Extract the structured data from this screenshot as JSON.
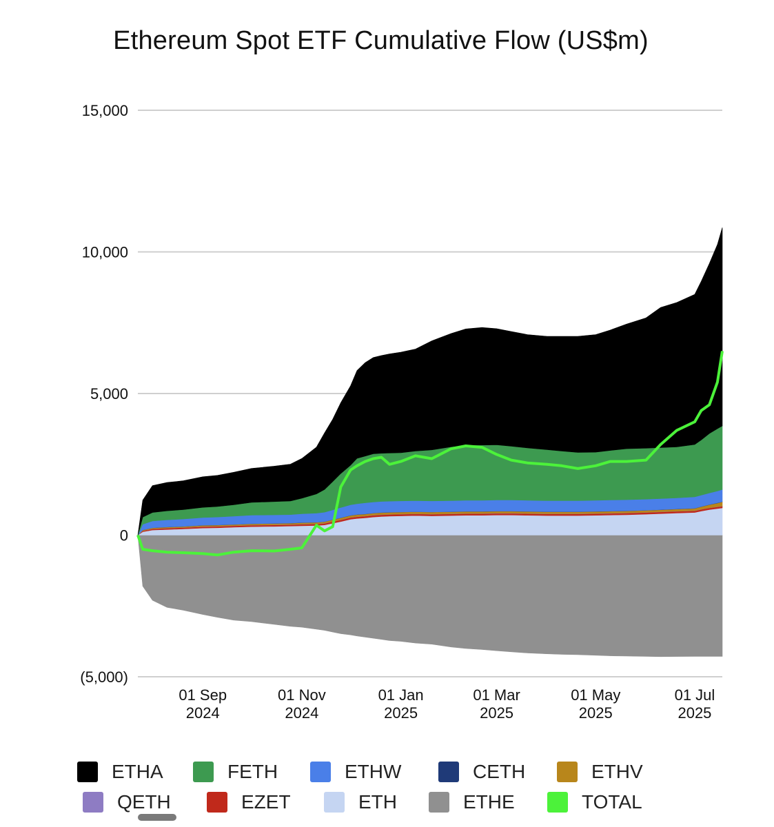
{
  "chart_data": {
    "type": "area",
    "title": "Ethereum Spot ETF Cumulative Flow (US$m)",
    "xlabel": "",
    "ylabel": "",
    "ylim": [
      -5000,
      15000
    ],
    "yticks": [
      15000,
      10000,
      5000,
      0,
      -5000
    ],
    "ytick_labels": [
      "15,000",
      "10,000",
      "5,000",
      "0",
      "(5,000)"
    ],
    "xlim": [
      "2024-07-23",
      "2025-07-18"
    ],
    "xticks": [
      "2024-09-01",
      "2024-11-01",
      "2025-01-01",
      "2025-03-01",
      "2025-05-01",
      "2025-07-01"
    ],
    "xtick_labels": [
      [
        "01 Sep",
        "2024"
      ],
      [
        "01 Nov",
        "2024"
      ],
      [
        "01 Jan",
        "2025"
      ],
      [
        "01 Mar",
        "2025"
      ],
      [
        "01 May",
        "2025"
      ],
      [
        "01 Jul",
        "2025"
      ]
    ],
    "grid": true,
    "legend_position": "bottom",
    "x": [
      "2024-07-23",
      "2024-07-26",
      "2024-08-01",
      "2024-08-10",
      "2024-08-20",
      "2024-09-01",
      "2024-09-10",
      "2024-09-20",
      "2024-10-01",
      "2024-10-15",
      "2024-10-25",
      "2024-11-01",
      "2024-11-10",
      "2024-11-15",
      "2024-11-20",
      "2024-11-25",
      "2024-12-01",
      "2024-12-05",
      "2024-12-10",
      "2024-12-15",
      "2024-12-20",
      "2024-12-25",
      "2025-01-01",
      "2025-01-10",
      "2025-01-20",
      "2025-02-01",
      "2025-02-10",
      "2025-02-20",
      "2025-03-01",
      "2025-03-10",
      "2025-03-20",
      "2025-04-01",
      "2025-04-10",
      "2025-04-20",
      "2025-05-01",
      "2025-05-10",
      "2025-05-20",
      "2025-06-01",
      "2025-06-10",
      "2025-06-20",
      "2025-07-01",
      "2025-07-05",
      "2025-07-10",
      "2025-07-15",
      "2025-07-18"
    ],
    "series": [
      {
        "name": "ETHE",
        "color": "#909090",
        "values": [
          0,
          -1800,
          -2300,
          -2550,
          -2650,
          -2800,
          -2900,
          -3000,
          -3050,
          -3150,
          -3220,
          -3250,
          -3320,
          -3360,
          -3420,
          -3480,
          -3520,
          -3560,
          -3600,
          -3640,
          -3680,
          -3720,
          -3750,
          -3810,
          -3850,
          -3950,
          -4000,
          -4040,
          -4080,
          -4120,
          -4160,
          -4190,
          -4210,
          -4220,
          -4240,
          -4260,
          -4270,
          -4280,
          -4290,
          -4285,
          -4280,
          -4280,
          -4280,
          -4280,
          -4280
        ]
      },
      {
        "name": "ETH",
        "color": "#c5d5f2",
        "values": [
          0,
          120,
          180,
          200,
          220,
          250,
          260,
          280,
          300,
          310,
          320,
          330,
          340,
          360,
          420,
          480,
          560,
          590,
          610,
          640,
          660,
          670,
          680,
          690,
          680,
          690,
          700,
          700,
          710,
          710,
          700,
          690,
          690,
          690,
          700,
          710,
          720,
          740,
          760,
          780,
          800,
          850,
          900,
          940,
          960
        ]
      },
      {
        "name": "EZET",
        "color": "#c0291b",
        "values": [
          0,
          30,
          40,
          45,
          45,
          50,
          50,
          50,
          50,
          50,
          50,
          55,
          55,
          55,
          60,
          60,
          60,
          60,
          60,
          60,
          60,
          60,
          60,
          60,
          60,
          60,
          60,
          60,
          60,
          60,
          60,
          60,
          60,
          60,
          60,
          60,
          60,
          60,
          60,
          60,
          60,
          60,
          60,
          60,
          60
        ]
      },
      {
        "name": "QETH",
        "color": "#8e7cc3",
        "values": [
          0,
          5,
          5,
          5,
          5,
          5,
          5,
          5,
          5,
          5,
          5,
          5,
          5,
          5,
          5,
          5,
          5,
          5,
          5,
          5,
          5,
          5,
          5,
          5,
          5,
          5,
          5,
          5,
          5,
          5,
          5,
          5,
          5,
          5,
          5,
          5,
          5,
          5,
          5,
          5,
          5,
          5,
          5,
          5,
          5
        ]
      },
      {
        "name": "ETHV",
        "color": "#b8861b",
        "values": [
          0,
          25,
          30,
          35,
          35,
          40,
          40,
          40,
          45,
          45,
          45,
          50,
          50,
          55,
          60,
          65,
          70,
          70,
          70,
          70,
          70,
          70,
          70,
          70,
          70,
          70,
          70,
          70,
          70,
          70,
          70,
          70,
          70,
          70,
          70,
          70,
          70,
          70,
          70,
          75,
          80,
          90,
          110,
          130,
          150
        ]
      },
      {
        "name": "CETH",
        "color": "#1f3a78",
        "values": [
          0,
          5,
          5,
          5,
          5,
          5,
          5,
          5,
          5,
          5,
          5,
          5,
          5,
          5,
          5,
          5,
          5,
          5,
          5,
          5,
          5,
          5,
          5,
          5,
          5,
          5,
          5,
          5,
          5,
          5,
          5,
          5,
          5,
          5,
          5,
          5,
          5,
          5,
          5,
          5,
          5,
          5,
          5,
          5,
          5
        ]
      },
      {
        "name": "ETHW",
        "color": "#4a7fe8",
        "values": [
          0,
          200,
          240,
          250,
          260,
          270,
          280,
          290,
          300,
          300,
          300,
          310,
          320,
          330,
          340,
          360,
          370,
          380,
          390,
          390,
          390,
          390,
          390,
          390,
          390,
          390,
          390,
          390,
          390,
          390,
          390,
          390,
          390,
          390,
          390,
          390,
          390,
          390,
          390,
          390,
          400,
          400,
          410,
          420,
          430
        ]
      },
      {
        "name": "FETH",
        "color": "#3d9a50",
        "values": [
          0,
          250,
          300,
          320,
          330,
          360,
          370,
          400,
          450,
          470,
          480,
          550,
          680,
          800,
          1000,
          1200,
          1400,
          1600,
          1650,
          1700,
          1700,
          1700,
          1700,
          1750,
          1800,
          1900,
          1950,
          1950,
          1950,
          1900,
          1850,
          1800,
          1750,
          1700,
          1700,
          1750,
          1800,
          1800,
          1800,
          1800,
          1850,
          1950,
          2100,
          2200,
          2250
        ]
      },
      {
        "name": "ETHA",
        "color": "#000000",
        "values": [
          0,
          600,
          950,
          1000,
          1020,
          1080,
          1100,
          1150,
          1200,
          1250,
          1300,
          1400,
          1650,
          2000,
          2200,
          2500,
          2800,
          3100,
          3300,
          3400,
          3450,
          3500,
          3550,
          3600,
          3850,
          4000,
          4100,
          4150,
          4100,
          4050,
          4000,
          4000,
          4050,
          4100,
          4150,
          4250,
          4400,
          4600,
          4950,
          5100,
          5300,
          5600,
          6000,
          6500,
          7000
        ]
      }
    ],
    "total": {
      "name": "TOTAL",
      "color": "#4cf23a",
      "values": [
        0,
        -500,
        -550,
        -600,
        -620,
        -650,
        -700,
        -600,
        -550,
        -560,
        -500,
        -450,
        350,
        150,
        300,
        1700,
        2300,
        2450,
        2600,
        2700,
        2750,
        2500,
        2600,
        2800,
        2700,
        3050,
        3150,
        3100,
        2850,
        2650,
        2550,
        2500,
        2450,
        2350,
        2450,
        2600,
        2600,
        2650,
        3200,
        3700,
        4000,
        4400,
        4600,
        5400,
        6500
      ]
    }
  },
  "legend": {
    "rows": [
      [
        {
          "label": "ETHA",
          "color": "#000000"
        },
        {
          "label": "FETH",
          "color": "#3d9a50"
        },
        {
          "label": "ETHW",
          "color": "#4a7fe8"
        },
        {
          "label": "CETH",
          "color": "#1f3a78"
        },
        {
          "label": "ETHV",
          "color": "#b8861b"
        }
      ],
      [
        {
          "label": "QETH",
          "color": "#8e7cc3"
        },
        {
          "label": "EZET",
          "color": "#c0291b"
        },
        {
          "label": "ETH",
          "color": "#c5d5f2"
        },
        {
          "label": "ETHE",
          "color": "#909090"
        },
        {
          "label": "TOTAL",
          "color": "#4cf23a"
        }
      ]
    ]
  }
}
